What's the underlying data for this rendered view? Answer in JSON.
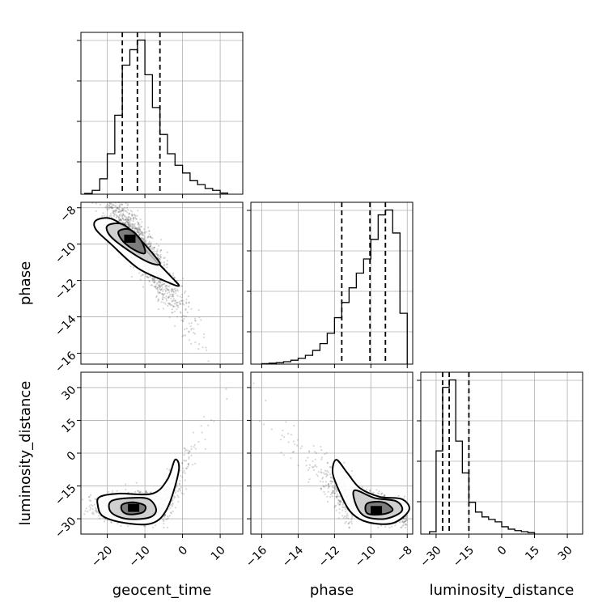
{
  "chart_data": {
    "type": "corner",
    "parameters": [
      {
        "name": "geocent_time",
        "label": "geocent_time",
        "range": [
          -27,
          16
        ],
        "ticks": [
          -20,
          -10,
          0,
          10
        ],
        "tick_labels": [
          "−20",
          "−10",
          "0",
          "10"
        ]
      },
      {
        "name": "phase",
        "label": "phase",
        "range": [
          -16.6,
          -7.7
        ],
        "ticks": [
          -16,
          -14,
          -12,
          -10,
          -8
        ],
        "tick_labels": [
          "−16",
          "−14",
          "−12",
          "−10",
          "−8"
        ]
      },
      {
        "name": "luminosity_distance",
        "label": "luminosity_distance",
        "range": [
          -37,
          37
        ],
        "ticks": [
          -30,
          -15,
          0,
          15,
          30
        ],
        "tick_labels": [
          "−30",
          "−15",
          "0",
          "15",
          "30"
        ]
      }
    ],
    "marginals": [
      {
        "parameter": "geocent_time",
        "bins": [
          -26,
          -24,
          -22,
          -20,
          -18,
          -16,
          -14,
          -12,
          -10,
          -8,
          -6,
          -4,
          -2,
          0,
          2,
          4,
          6,
          8,
          10,
          12
        ],
        "counts": [
          0.2,
          1.0,
          4.0,
          10.5,
          20.5,
          33.5,
          37.5,
          40.0,
          31.0,
          22.5,
          15.5,
          10.5,
          7.5,
          5.5,
          3.5,
          2.5,
          1.5,
          1.0,
          0.3
        ],
        "quantiles": [
          -16,
          -12,
          -6
        ]
      },
      {
        "parameter": "phase",
        "bins": [
          -16.0,
          -15.6,
          -15.2,
          -14.8,
          -14.4,
          -14.0,
          -13.6,
          -13.2,
          -12.8,
          -12.4,
          -12.0,
          -11.6,
          -11.2,
          -10.8,
          -10.4,
          -10.0,
          -9.6,
          -9.2,
          -8.8,
          -8.4,
          -8.0
        ],
        "counts": [
          0.1,
          0.2,
          0.3,
          0.5,
          0.8,
          1.2,
          1.8,
          2.8,
          4.2,
          6.3,
          9.5,
          12.6,
          15.6,
          18.6,
          21.5,
          25.5,
          30.5,
          31.5,
          26.8,
          10.4
        ],
        "quantiles": [
          -11.6,
          -10.05,
          -9.2
        ]
      },
      {
        "parameter": "luminosity_distance",
        "bins": [
          -33,
          -30,
          -27,
          -24,
          -21,
          -18,
          -15,
          -12,
          -9,
          -6,
          -3,
          0,
          3,
          6,
          9,
          12,
          15
        ],
        "counts": [
          0.5,
          17.0,
          30.0,
          31.5,
          19.0,
          12.5,
          6.5,
          4.5,
          3.5,
          3.0,
          2.5,
          1.5,
          1.0,
          0.7,
          0.5,
          0.3
        ],
        "quantiles": [
          -27,
          -24,
          -15
        ]
      }
    ],
    "joint_posteriors": [
      {
        "x": "geocent_time",
        "y": "phase",
        "peak": [
          -14,
          -9.7
        ],
        "correlation": "negative"
      },
      {
        "x": "geocent_time",
        "y": "luminosity_distance",
        "peak": [
          -13,
          -25
        ],
        "correlation": "positive"
      },
      {
        "x": "phase",
        "y": "luminosity_distance",
        "peak": [
          -9.7,
          -26
        ],
        "correlation": "negative"
      }
    ],
    "quantile_line_style": "dashed",
    "grid": true
  }
}
